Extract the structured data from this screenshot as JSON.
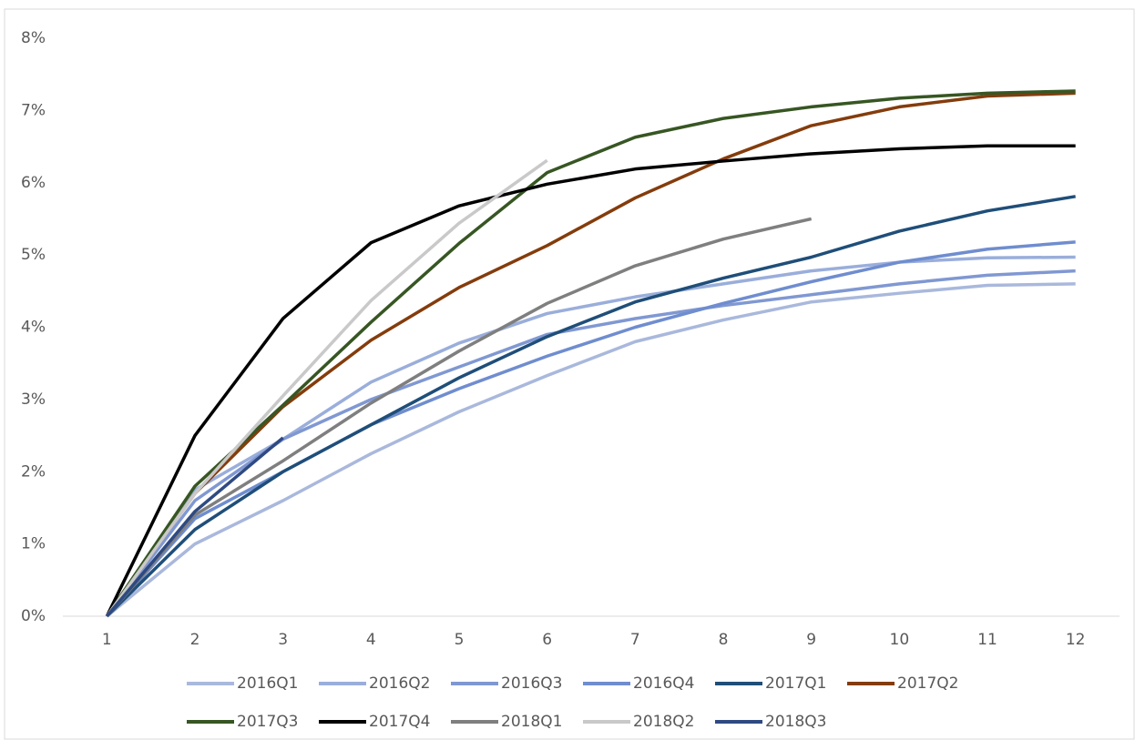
{
  "chart_data": {
    "type": "line",
    "categories": [
      "1",
      "2",
      "3",
      "4",
      "5",
      "6",
      "7",
      "8",
      "9",
      "10",
      "11",
      "12"
    ],
    "ylim": [
      0,
      8
    ],
    "yticks": [
      {
        "value": 0,
        "label": "0%"
      },
      {
        "value": 1,
        "label": "1%"
      },
      {
        "value": 2,
        "label": "2%"
      },
      {
        "value": 3,
        "label": "3%"
      },
      {
        "value": 4,
        "label": "4%"
      },
      {
        "value": 5,
        "label": "5%"
      },
      {
        "value": 6,
        "label": "6%"
      },
      {
        "value": 7,
        "label": "7%"
      },
      {
        "value": 8,
        "label": "8%"
      }
    ],
    "grid": false,
    "legend": "bottom",
    "series": [
      {
        "name": "2016Q1",
        "color": "#a9b8dc",
        "values": [
          0,
          1.0,
          1.6,
          2.25,
          2.83,
          3.33,
          3.8,
          4.1,
          4.35,
          4.47,
          4.58,
          4.6
        ]
      },
      {
        "name": "2016Q2",
        "color": "#9aaedb",
        "values": [
          0,
          1.75,
          2.45,
          3.24,
          3.78,
          4.19,
          4.42,
          4.6,
          4.78,
          4.9,
          4.96,
          4.97
        ]
      },
      {
        "name": "2016Q3",
        "color": "#8098d2",
        "values": [
          0,
          1.6,
          2.45,
          3.0,
          3.45,
          3.9,
          4.12,
          4.3,
          4.45,
          4.6,
          4.72,
          4.78
        ]
      },
      {
        "name": "2016Q4",
        "color": "#6f8dcf",
        "values": [
          0,
          1.35,
          2.0,
          2.65,
          3.15,
          3.6,
          4.0,
          4.33,
          4.63,
          4.9,
          5.08,
          5.18
        ]
      },
      {
        "name": "2017Q1",
        "color": "#1f4e79",
        "values": [
          0,
          1.2,
          2.0,
          2.65,
          3.3,
          3.87,
          4.35,
          4.68,
          4.97,
          5.33,
          5.61,
          5.81
        ]
      },
      {
        "name": "2017Q2",
        "color": "#843c0c",
        "values": [
          0,
          1.7,
          2.9,
          3.82,
          4.55,
          5.13,
          5.79,
          6.33,
          6.79,
          7.05,
          7.2,
          7.24
        ]
      },
      {
        "name": "2017Q3",
        "color": "#375623",
        "values": [
          0,
          1.8,
          2.92,
          4.07,
          5.16,
          6.14,
          6.63,
          6.89,
          7.05,
          7.17,
          7.24,
          7.27
        ]
      },
      {
        "name": "2017Q4",
        "color": "#000000",
        "values": [
          0,
          2.5,
          4.12,
          5.17,
          5.68,
          5.98,
          6.19,
          6.3,
          6.4,
          6.47,
          6.51,
          6.51
        ]
      },
      {
        "name": "2018Q1",
        "color": "#7f7f7f",
        "values": [
          0,
          1.4,
          2.15,
          2.95,
          3.67,
          4.33,
          4.85,
          5.22,
          5.5,
          null,
          null,
          null
        ]
      },
      {
        "name": "2018Q2",
        "color": "#c9c9c9",
        "values": [
          0,
          1.7,
          3.05,
          4.37,
          5.44,
          6.31,
          null,
          null,
          null,
          null,
          null,
          null
        ]
      },
      {
        "name": "2018Q3",
        "color": "#2f4a82",
        "values": [
          0,
          1.45,
          2.47,
          null,
          null,
          null,
          null,
          null,
          null,
          null,
          null,
          null
        ]
      }
    ]
  }
}
